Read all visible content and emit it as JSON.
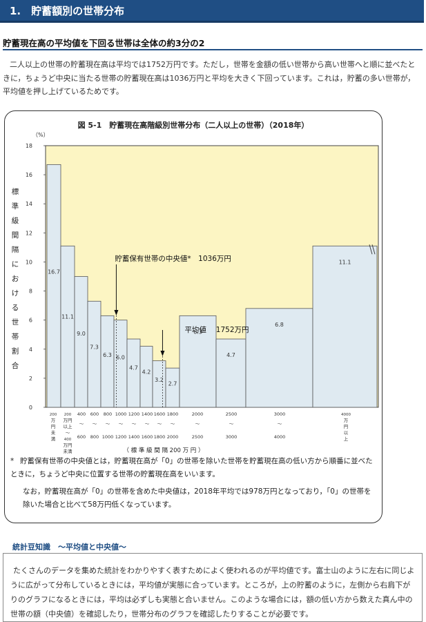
{
  "header": {
    "title": "1.　貯蓄額別の世帯分布"
  },
  "subheading": "貯蓄現在高の平均値を下回る世帯は全体の約3分の2",
  "lead_text": "二人以上の世帯の貯蓄現在高は平均では1752万円です。ただし，世帯を金額の低い世帯から高い世帯へと順に並べたときに，ちょうど中央に当たる世帯の貯蓄現在高は1036万円と平均を大きく下回っています。これは，貯蓄の多い世帯が，平均値を押し上げているためです。",
  "figure": {
    "title": "図 5-1　貯蓄現在高階級別世帯分布（二人以上の世帯）（2018年）",
    "annotation_median": "貯蓄保有世帯の中央値*　1036万円",
    "annotation_mean": "平均値　 1752万円",
    "notes": {
      "star": "*",
      "note1": "貯蓄保有世帯の中央値とは，貯蓄現在高が「0」の世帯を除いた世帯を貯蓄現在高の低い方から順番に並べたときに，ちょうど中央に位置する世帯の貯蓄現在高をいいます。",
      "note2": "なお，貯蓄現在高が「0」の世帯を含めた中央値は，2018年平均では978万円となっており，「0」の世帯を除いた場合と比べて58万円低くなっています。"
    }
  },
  "chart_data": {
    "type": "bar",
    "title": "図 5-1　貯蓄現在高階級別世帯分布（二人以上の世帯）（2018年）",
    "y_unit": "（%）",
    "ylabel": "標準級間隔における世帯割合",
    "xlabel": "（ 標 準 級 間 隔 200 万 円 ）",
    "ylim": [
      0,
      18
    ],
    "yticks": [
      "0",
      "2",
      "4",
      "6",
      "8",
      "10",
      "12",
      "14",
      "16",
      "18"
    ],
    "grid": false,
    "bins": [
      {
        "from": 0,
        "to": 200,
        "value": 16.7,
        "label": "16.7"
      },
      {
        "from": 200,
        "to": 400,
        "value": 11.1,
        "label": "11.1"
      },
      {
        "from": 400,
        "to": 600,
        "value": 9.0,
        "label": "9.0"
      },
      {
        "from": 600,
        "to": 800,
        "value": 7.3,
        "label": "7.3"
      },
      {
        "from": 800,
        "to": 1000,
        "value": 6.3,
        "label": "6.3"
      },
      {
        "from": 1000,
        "to": 1200,
        "value": 6.0,
        "label": "6.0"
      },
      {
        "from": 1200,
        "to": 1400,
        "value": 4.7,
        "label": "4.7"
      },
      {
        "from": 1400,
        "to": 1600,
        "value": 4.2,
        "label": "4.2"
      },
      {
        "from": 1600,
        "to": 1800,
        "value": 3.2,
        "label": "3.2"
      },
      {
        "from": 1800,
        "to": 2000,
        "value": 2.7,
        "label": "2.7"
      },
      {
        "from": 2000,
        "to": 2500,
        "value": 6.3,
        "label": "6.3"
      },
      {
        "from": 2500,
        "to": 3000,
        "value": 4.7,
        "label": "4.7"
      },
      {
        "from": 3000,
        "to": 4000,
        "value": 6.8,
        "label": "6.8"
      },
      {
        "from": 4000,
        "to": null,
        "value": 11.1,
        "label": "11.1"
      }
    ],
    "x_ticks": [
      [
        "200",
        "万",
        "円",
        "未",
        "満"
      ],
      [
        "200",
        "万円",
        "以上",
        "〜",
        "400",
        "万円",
        "未満"
      ],
      [
        "400",
        "〜",
        "600"
      ],
      [
        "600",
        "〜",
        "800"
      ],
      [
        "800",
        "〜",
        "1000"
      ],
      [
        "1000",
        "〜",
        "1200"
      ],
      [
        "1200",
        "〜",
        "1400"
      ],
      [
        "1400",
        "〜",
        "1600"
      ],
      [
        "1600",
        "〜",
        "1800"
      ],
      [
        "1800",
        "〜",
        "2000"
      ],
      [
        "2000",
        "〜",
        "2500"
      ],
      [
        "2500",
        "〜",
        "3000"
      ],
      [
        "3000",
        "〜",
        "4000"
      ],
      [
        "4000",
        "万",
        "円",
        "以",
        "上"
      ]
    ],
    "median": 1036,
    "mean": 1752,
    "colors": {
      "plot_bg": "#fcf5c3",
      "bar_fill": "#dfeaf1",
      "bar_stroke": "#555555"
    }
  },
  "section": {
    "title": "統計豆知識　〜平均値と中央値〜",
    "body": "たくさんのデータを集めた統計をわかりやすく表すためによく使われるのが平均値です。富士山のように左右に同じように広がって分布しているときには，平均値が実態に合っています。ところが，上の貯蓄のように，左側から右肩下がりのグラフになるときには，平均は必ずしも実態と合いません。このような場合には，額の低い方から数えた真ん中の世帯の額（中央値）を確認したり，世帯分布のグラフを確認したりすることが必要です。"
  }
}
